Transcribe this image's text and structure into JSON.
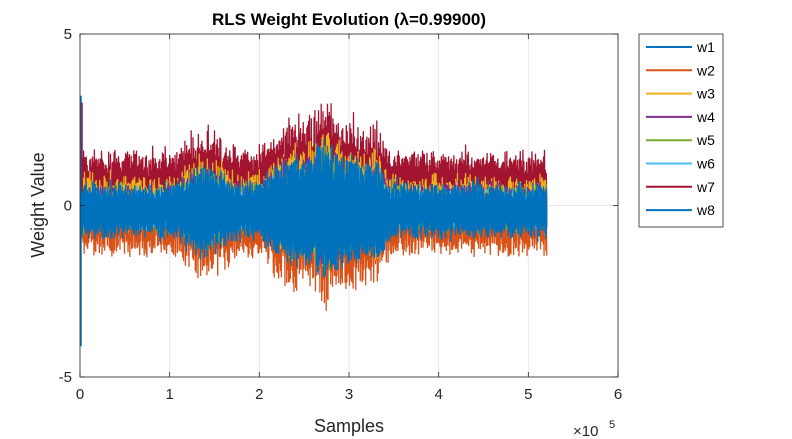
{
  "chart_data": {
    "type": "line",
    "title": "RLS Weight Evolution (λ=0.99900)",
    "xlabel": "Samples",
    "ylabel": "Weight Value",
    "x_exponent": "5",
    "x_multiplier": "×10",
    "xlim": [
      0,
      600000
    ],
    "ylim": [
      -5,
      5
    ],
    "xticks": [
      0,
      1,
      2,
      3,
      4,
      5,
      6
    ],
    "yticks": [
      -5,
      0,
      5
    ],
    "grid": true,
    "legend_position": "outside-top-right",
    "n_samples": 520000,
    "series": [
      {
        "name": "w1",
        "color": "#0072BD",
        "center": -0.15,
        "half_range": 0.55
      },
      {
        "name": "w2",
        "color": "#D95319",
        "center": -0.55,
        "half_range": 0.7
      },
      {
        "name": "w3",
        "color": "#EDB120",
        "center": 0.1,
        "half_range": 0.6
      },
      {
        "name": "w4",
        "color": "#7E2F8E",
        "center": 0.0,
        "half_range": 0.5
      },
      {
        "name": "w5",
        "color": "#77AC30",
        "center": -0.1,
        "half_range": 0.5
      },
      {
        "name": "w6",
        "color": "#4DBEEE",
        "center": -0.1,
        "half_range": 0.4
      },
      {
        "name": "w7",
        "color": "#A2142F",
        "center": 0.75,
        "half_range": 0.65
      },
      {
        "name": "w8",
        "color": "#0072BD",
        "center": -0.15,
        "half_range": 0.6
      }
    ]
  }
}
